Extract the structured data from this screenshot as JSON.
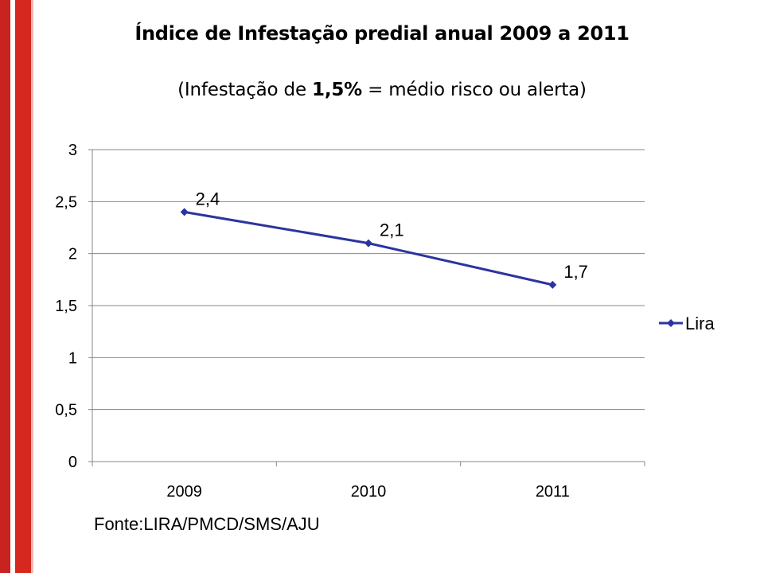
{
  "title": "Índice de Infestação predial anual 2009 a 2011",
  "subtitle": {
    "before": "(Infestação de ",
    "bold": "1,5%",
    "after": " = médio risco ou alerta)"
  },
  "source": "Fonte:LIRA/PMCD/SMS/AJU",
  "colors": {
    "series": "#2b34a0",
    "grid": "#878787",
    "brand_red": "#d7281f"
  },
  "chart_data": {
    "type": "line",
    "title": "Índice de Infestação predial anual 2009 a 2011",
    "categories": [
      "2009",
      "2010",
      "2011"
    ],
    "series": [
      {
        "name": "Lira",
        "values": [
          2.4,
          2.1,
          1.7
        ],
        "labels": [
          "2,4",
          "2,1",
          "1,7"
        ]
      }
    ],
    "ylim": [
      0,
      3
    ],
    "yticks": [
      0,
      0.5,
      1,
      1.5,
      2,
      2.5,
      3
    ],
    "ytick_labels": [
      "0",
      "0,5",
      "1",
      "1,5",
      "2",
      "2,5",
      "3"
    ],
    "grid": true,
    "legend": "right",
    "xlabel": "",
    "ylabel": ""
  }
}
